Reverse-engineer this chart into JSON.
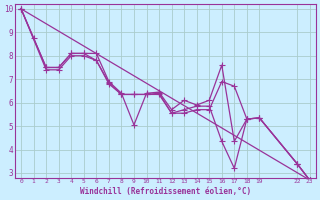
{
  "background_color": "#cceeff",
  "grid_color": "#aacccc",
  "line_color": "#993399",
  "marker_color": "#993399",
  "xlabel": "Windchill (Refroidissement éolien,°C)",
  "xlim": [
    -0.5,
    23.5
  ],
  "ylim": [
    2.8,
    10.2
  ],
  "yticks": [
    3,
    4,
    5,
    6,
    7,
    8,
    9,
    10
  ],
  "xtick_positions": [
    0,
    1,
    2,
    3,
    4,
    5,
    6,
    7,
    8,
    9,
    10,
    11,
    12,
    13,
    14,
    15,
    16,
    17,
    18,
    19,
    22,
    23
  ],
  "xtick_labels": [
    "0",
    "1",
    "2",
    "3",
    "4",
    "5",
    "6",
    "7",
    "8",
    "9",
    "10",
    "11",
    "12",
    "13",
    "14",
    "15",
    "16",
    "17",
    "18",
    "19",
    "22",
    "23"
  ],
  "series": [
    {
      "x": [
        0,
        23
      ],
      "y": [
        10,
        2.7
      ]
    },
    {
      "x": [
        0,
        1,
        2,
        3,
        4,
        5,
        6,
        7,
        8,
        9,
        10,
        11,
        12,
        13,
        14,
        15,
        16,
        17,
        18,
        19,
        22,
        23
      ],
      "y": [
        10,
        8.75,
        7.5,
        7.5,
        8.1,
        8.1,
        8.1,
        6.9,
        6.4,
        5.05,
        6.4,
        6.45,
        5.7,
        6.1,
        5.9,
        6.1,
        7.6,
        4.35,
        5.3,
        5.35,
        3.4,
        2.7
      ]
    },
    {
      "x": [
        0,
        2,
        3,
        4,
        5,
        6,
        7,
        8,
        9,
        10,
        11,
        12,
        13,
        14,
        15,
        16,
        17,
        18,
        19,
        22,
        23
      ],
      "y": [
        10,
        7.5,
        7.5,
        8.1,
        8.1,
        7.8,
        6.8,
        6.35,
        6.35,
        6.35,
        6.4,
        5.55,
        5.7,
        5.85,
        5.85,
        4.35,
        3.2,
        5.3,
        5.35,
        3.4,
        2.7
      ]
    },
    {
      "x": [
        0,
        2,
        3,
        4,
        5,
        6,
        7,
        8,
        9,
        10,
        11,
        12,
        13,
        14,
        15,
        16,
        17,
        18,
        19,
        22,
        23
      ],
      "y": [
        10,
        7.4,
        7.4,
        8.0,
        8.0,
        7.8,
        6.85,
        6.35,
        6.35,
        6.35,
        6.35,
        5.55,
        5.55,
        5.7,
        5.7,
        6.9,
        6.7,
        5.3,
        5.35,
        3.4,
        2.7
      ]
    }
  ]
}
